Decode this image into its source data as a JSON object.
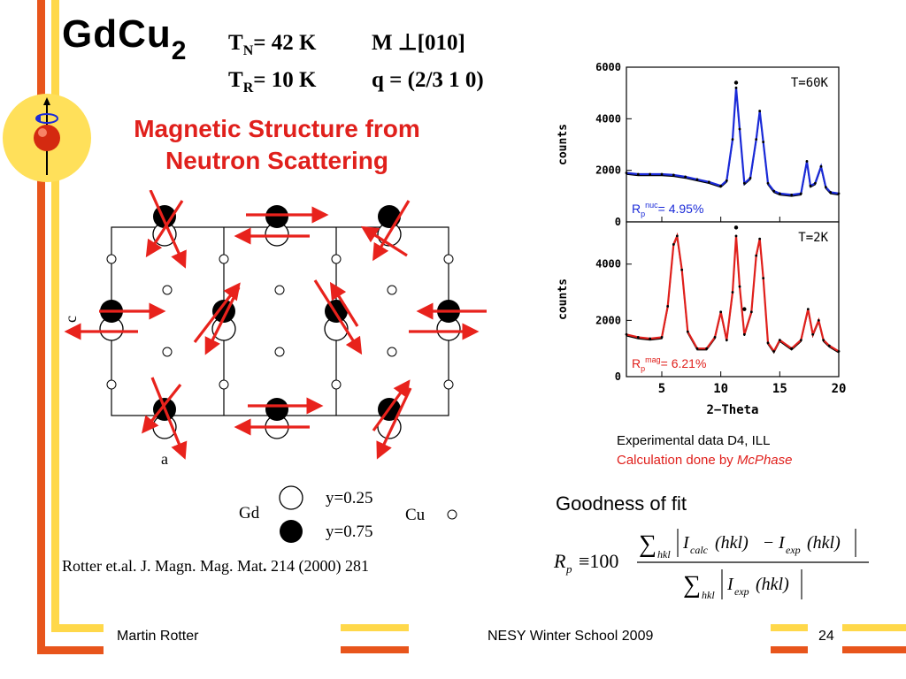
{
  "header": {
    "compound_main": "GdCu",
    "compound_sub": "2",
    "tn_prefix": "T",
    "tn_sub": "N",
    "tn_value": "= 42 K",
    "m_label": "M ⊥[010]",
    "tr_prefix": "T",
    "tr_sub": "R",
    "tr_value": "= 10 K",
    "q_label": "q = (2/3 1 0)"
  },
  "subtitle_line1": "Magnetic Structure from",
  "subtitle_line2": "Neutron Scattering",
  "structure": {
    "axis_c": "c",
    "axis_a": "a",
    "legend_gd": "Gd",
    "legend_y025": "y=0.25",
    "legend_y075": "y=0.75",
    "legend_cu": "Cu"
  },
  "reference": {
    "prefix": "Rotter et.al. J. Magn. Mag. Mat",
    "dot": ".",
    "suffix": " 214 (2000) 281"
  },
  "experiment_note": {
    "line1": "Experimental data D4, ILL",
    "line2_prefix": "Calculation done by ",
    "line2_program": "McPhase"
  },
  "goodness": {
    "title": "Goodness of fit",
    "formula_lhs": "R",
    "formula_lhs_sub": "p",
    "formula_equiv": "≡100",
    "num_sum_sub": "hkl",
    "num_i_calc": "I",
    "num_calc_sub": "calc",
    "num_hkl1": "(hkl)",
    "num_minus": "−",
    "num_i_exp": "I",
    "num_exp_sub": "exp",
    "num_hkl2": "(hkl)",
    "den_sum_sub": "hkl",
    "den_i_exp": "I",
    "den_exp_sub": "exp",
    "den_hkl": "(hkl)"
  },
  "footer": {
    "author": "Martin Rotter",
    "event": "NESY Winter School 2009",
    "page": "24"
  },
  "colors": {
    "accent_orange": "#e8551c",
    "accent_yellow": "#ffd84a",
    "title_red": "#e0201c",
    "nuc_blue": "#1a2ad8",
    "mag_red": "#e0201c"
  },
  "chart_data": [
    {
      "type": "line",
      "panel": "top",
      "label": "T=60K",
      "ylabel": "counts",
      "xlim": [
        2,
        20
      ],
      "ylim": [
        0,
        6000
      ],
      "yticks": [
        "0",
        "2000",
        "4000",
        "6000"
      ],
      "rfactor_prefix": "R",
      "rfactor_sub": "p",
      "rfactor_sup": "nuc",
      "rfactor_value": "= 4.95%",
      "series": [
        {
          "color": "#1a2ad8",
          "x": [
            2,
            3,
            4,
            5,
            6,
            7,
            8,
            9,
            10,
            10.5,
            11,
            11.3,
            11.6,
            12,
            12.5,
            13,
            13.3,
            13.6,
            14,
            14.5,
            15,
            16,
            16.8,
            17.3,
            17.6,
            18,
            18.5,
            18.9,
            19.3,
            20
          ],
          "y": [
            1900,
            1850,
            1850,
            1850,
            1820,
            1750,
            1650,
            1550,
            1400,
            1600,
            3200,
            5200,
            3600,
            1500,
            1700,
            3200,
            4300,
            3100,
            1500,
            1200,
            1100,
            1050,
            1100,
            2350,
            1400,
            1500,
            2150,
            1350,
            1150,
            1100
          ]
        }
      ],
      "markers": [
        {
          "x": 11.3,
          "y": 5400
        }
      ]
    },
    {
      "type": "line",
      "panel": "bottom",
      "label": "T=2K",
      "ylabel": "counts",
      "xlabel": "2−Theta",
      "xlim": [
        2,
        20
      ],
      "ylim": [
        0,
        5500
      ],
      "xticks": [
        "5",
        "10",
        "15",
        "20"
      ],
      "yticks": [
        "0",
        "2000",
        "4000"
      ],
      "rfactor_prefix": "R",
      "rfactor_sub": "p",
      "rfactor_sup": "mag",
      "rfactor_value": "= 6.21%",
      "series": [
        {
          "color": "#e0201c",
          "x": [
            2,
            3,
            4,
            5,
            5.5,
            6,
            6.3,
            6.7,
            7.2,
            8,
            8.8,
            9.5,
            10,
            10.5,
            11,
            11.3,
            11.6,
            12,
            12.6,
            13,
            13.3,
            13.6,
            14,
            14.5,
            15,
            16,
            16.8,
            17.4,
            17.8,
            18.3,
            18.7,
            19.2,
            20
          ],
          "y": [
            1500,
            1400,
            1350,
            1400,
            2500,
            4700,
            5000,
            3800,
            1600,
            1000,
            1000,
            1400,
            2300,
            1300,
            3000,
            5000,
            3200,
            1500,
            2300,
            4300,
            4900,
            3500,
            1200,
            900,
            1300,
            1000,
            1300,
            2400,
            1500,
            2000,
            1300,
            1100,
            900
          ]
        }
      ],
      "markers": [
        {
          "x": 11.3,
          "y": 5300
        },
        {
          "x": 12.0,
          "y": 2400
        }
      ]
    }
  ]
}
